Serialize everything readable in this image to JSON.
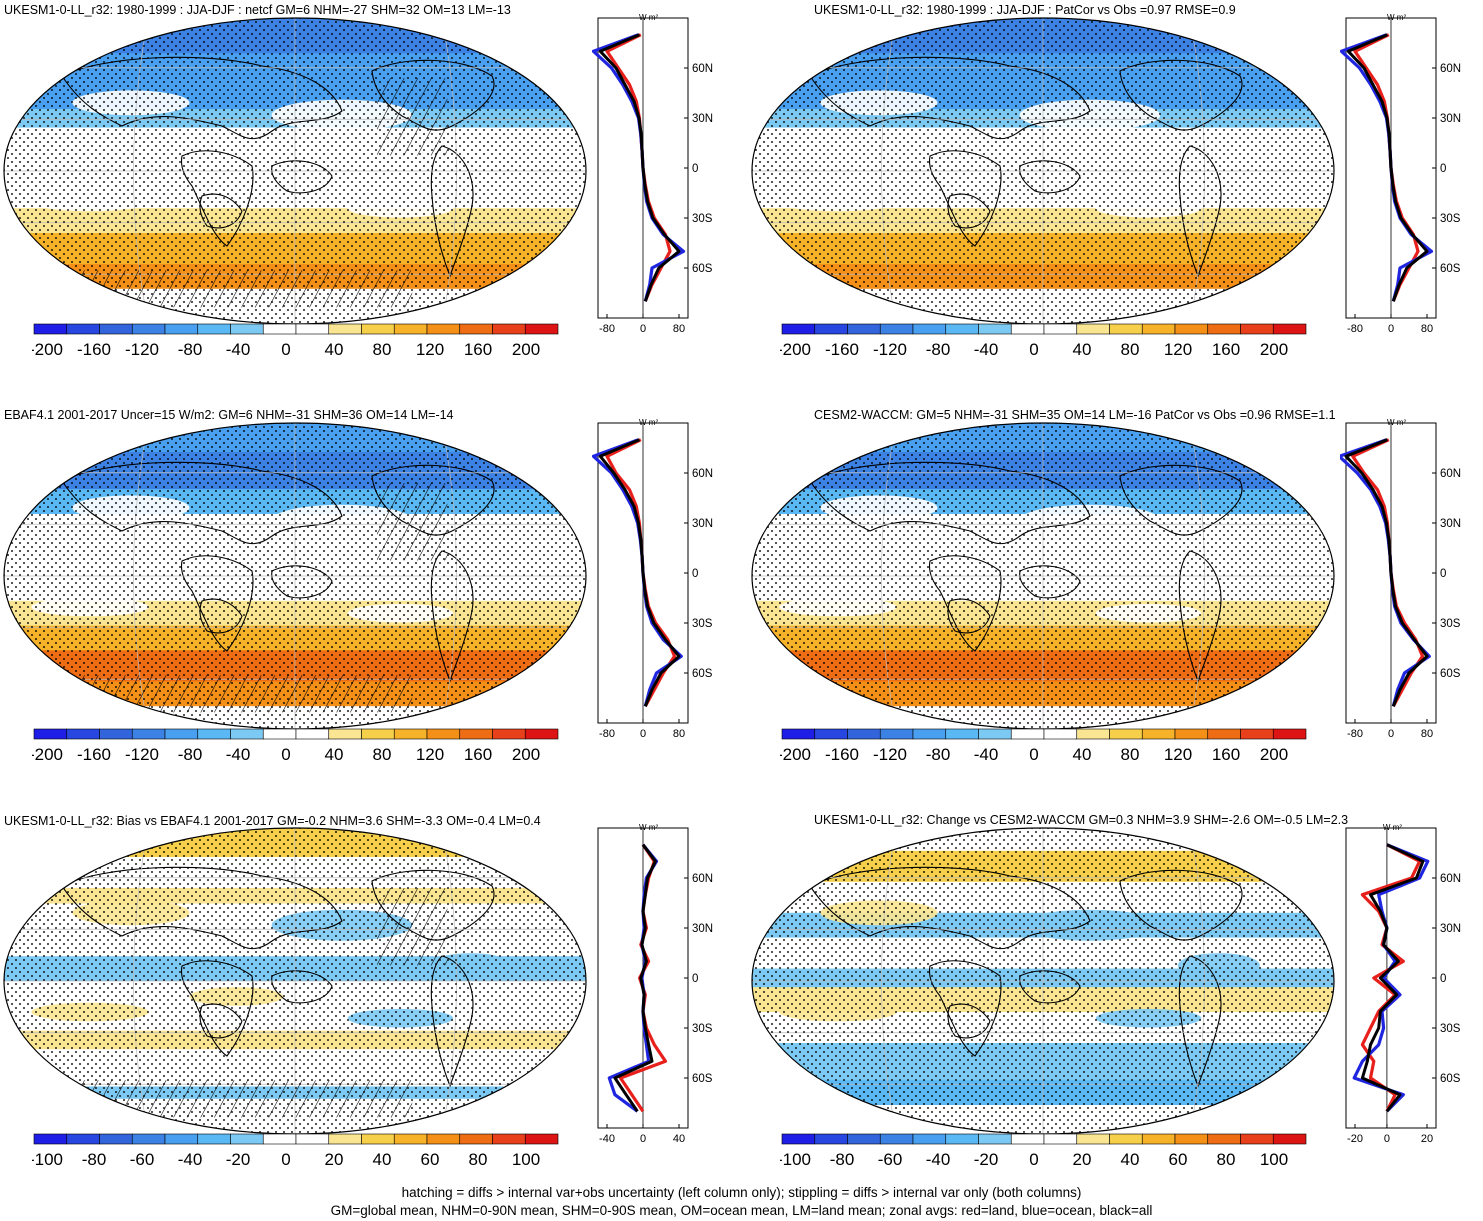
{
  "colors": {
    "scale": [
      "#1e1ee6",
      "#2846e0",
      "#3264dc",
      "#3c82e4",
      "#4aa0f0",
      "#5ab8f4",
      "#7ccaf4",
      "#ffffff",
      "#ffffff",
      "#fae692",
      "#f6d04a",
      "#f6b228",
      "#f49018",
      "#ee6c14",
      "#e8401a",
      "#dc1414"
    ],
    "land": "#e8201c",
    "ocean": "#2026e0",
    "all": "#000000"
  },
  "panels": [
    {
      "title": "UKESM1-0-LL_r32: 1980-1999 : JJA-DJF : netcf GM=6 NHM=-27 SHM=32 OM=13 LM=-13",
      "hatch": true,
      "zonal_unit": "W m²",
      "zonal_ticks": [
        "-80",
        "0",
        "80"
      ],
      "lat_ticks": [
        "60N",
        "30N",
        "0",
        "30S",
        "60S"
      ],
      "colorbar_labels": [
        "-200",
        "-160",
        "-120",
        "-80",
        "-40",
        "0",
        "40",
        "80",
        "120",
        "160",
        "200"
      ]
    },
    {
      "title": "UKESM1-0-LL_r32: 1980-1999 : JJA-DJF : PatCor vs Obs =0.97 RMSE=0.9",
      "hatch": false,
      "zonal_unit": "W m²",
      "zonal_ticks": [
        "-80",
        "0",
        "80"
      ],
      "lat_ticks": [
        "60N",
        "30N",
        "0",
        "30S",
        "60S"
      ],
      "colorbar_labels": [
        "-200",
        "-160",
        "-120",
        "-80",
        "-40",
        "0",
        "40",
        "80",
        "120",
        "160",
        "200"
      ]
    },
    {
      "title": "EBAF4.1 2001-2017 Uncer=15 W/m2: GM=6 NHM=-31 SHM=36 OM=14 LM=-14",
      "hatch": true,
      "zonal_unit": "W m²",
      "zonal_ticks": [
        "-80",
        "0",
        "80"
      ],
      "lat_ticks": [
        "60N",
        "30N",
        "0",
        "30S",
        "60S"
      ],
      "colorbar_labels": [
        "-200",
        "-160",
        "-120",
        "-80",
        "-40",
        "0",
        "40",
        "80",
        "120",
        "160",
        "200"
      ]
    },
    {
      "title": "CESM2-WACCM: GM=5 NHM=-31 SHM=35 OM=14 LM=-16 PatCor vs Obs =0.96 RMSE=1.1",
      "hatch": false,
      "zonal_unit": "W m²",
      "zonal_ticks": [
        "-80",
        "0",
        "80"
      ],
      "lat_ticks": [
        "60N",
        "30N",
        "0",
        "30S",
        "60S"
      ],
      "colorbar_labels": [
        "-200",
        "-160",
        "-120",
        "-80",
        "-40",
        "0",
        "40",
        "80",
        "120",
        "160",
        "200"
      ]
    },
    {
      "title": "UKESM1-0-LL_r32: Bias vs EBAF4.1 2001-2017 GM=-0.2 NHM=3.6 SHM=-3.3 OM=-0.4 LM=0.4",
      "hatch": true,
      "zonal_unit": "W m²",
      "zonal_ticks": [
        "-40",
        "0",
        "40"
      ],
      "lat_ticks": [
        "60N",
        "30N",
        "0",
        "30S",
        "60S"
      ],
      "colorbar_labels": [
        "-100",
        "-80",
        "-60",
        "-40",
        "-20",
        "0",
        "20",
        "40",
        "60",
        "80",
        "100"
      ]
    },
    {
      "title": "UKESM1-0-LL_r32: Change vs CESM2-WACCM GM=0.3 NHM=3.9 SHM=-2.6 OM=-0.5 LM=2.3",
      "hatch": false,
      "zonal_unit": "W m²",
      "zonal_ticks": [
        "-20",
        "0",
        "20"
      ],
      "lat_ticks": [
        "60N",
        "30N",
        "0",
        "30S",
        "60S"
      ],
      "colorbar_labels": [
        "-100",
        "-80",
        "-60",
        "-40",
        "-20",
        "0",
        "20",
        "40",
        "60",
        "80",
        "100"
      ]
    }
  ],
  "footer": {
    "line1": "hatching = diffs > internal var+obs uncertainty (left column only); stippling = diffs > internal var only (both columns)",
    "line2": "GM=global mean, NHM=0-90N mean, SHM=0-90S mean, OM=ocean mean, LM=land mean; zonal avgs: red=land, blue=ocean, black=all"
  },
  "chart_data": [
    {
      "type": "heatmap",
      "title": "UKESM1-0-LL_r32: 1980-1999 : JJA-DJF : netcf GM=6 NHM=-27 SHM=32 OM=13 LM=-13",
      "colorbar": {
        "min": -200,
        "max": 200,
        "labels": [
          -200,
          -160,
          -120,
          -80,
          -40,
          0,
          40,
          80,
          120,
          160,
          200
        ]
      },
      "zonal_mean": {
        "xlim": [
          -100,
          100
        ],
        "ylim": [
          -90,
          90
        ],
        "lat": [
          80,
          70,
          60,
          50,
          40,
          30,
          20,
          10,
          0,
          -10,
          -20,
          -30,
          -40,
          -50,
          -60,
          -70,
          -80
        ],
        "series": [
          {
            "values": [
              -5,
              -80,
              -55,
              -30,
              -15,
              -8,
              -5,
              -2,
              0,
              5,
              12,
              25,
              50,
              60,
              40,
              20,
              5
            ]
          },
          {
            "values": [
              -10,
              -110,
              -70,
              -45,
              -25,
              -10,
              -5,
              -2,
              0,
              3,
              8,
              20,
              45,
              90,
              20,
              15,
              5
            ]
          },
          {
            "values": [
              -8,
              -95,
              -60,
              -40,
              -20,
              -9,
              -4,
              -2,
              0,
              4,
              10,
              22,
              48,
              80,
              35,
              18,
              5
            ]
          }
        ]
      }
    },
    {
      "type": "heatmap",
      "title": "UKESM1-0-LL_r32: 1980-1999 : JJA-DJF : PatCor vs Obs =0.97 RMSE=0.9",
      "colorbar": {
        "min": -200,
        "max": 200,
        "labels": [
          -200,
          -160,
          -120,
          -80,
          -40,
          0,
          40,
          80,
          120,
          160,
          200
        ]
      },
      "zonal_mean": {
        "xlim": [
          -100,
          100
        ],
        "ylim": [
          -90,
          90
        ],
        "lat": [
          80,
          70,
          60,
          50,
          40,
          30,
          20,
          10,
          0,
          -10,
          -20,
          -30,
          -40,
          -50,
          -60,
          -70,
          -80
        ],
        "series": [
          {
            "values": [
              -5,
              -80,
              -55,
              -30,
              -15,
              -8,
              -5,
              -2,
              0,
              5,
              12,
              25,
              50,
              60,
              40,
              20,
              5
            ]
          },
          {
            "values": [
              -10,
              -110,
              -70,
              -45,
              -25,
              -10,
              -5,
              -2,
              0,
              3,
              8,
              20,
              45,
              90,
              20,
              15,
              5
            ]
          },
          {
            "values": [
              -8,
              -95,
              -60,
              -40,
              -20,
              -9,
              -4,
              -2,
              0,
              4,
              10,
              22,
              48,
              80,
              35,
              18,
              5
            ]
          }
        ]
      }
    },
    {
      "type": "heatmap",
      "title": "EBAF4.1 2001-2017 Uncer=15 W/m2: GM=6 NHM=-31 SHM=36 OM=14 LM=-14",
      "colorbar": {
        "min": -200,
        "max": 200,
        "labels": [
          -200,
          -160,
          -120,
          -80,
          -40,
          0,
          40,
          80,
          120,
          160,
          200
        ]
      },
      "zonal_mean": {
        "xlim": [
          -100,
          100
        ],
        "ylim": [
          -90,
          90
        ],
        "lat": [
          80,
          70,
          60,
          50,
          40,
          30,
          20,
          10,
          0,
          -10,
          -20,
          -30,
          -40,
          -50,
          -60,
          -70,
          -80
        ],
        "series": [
          {
            "values": [
              -5,
              -80,
              -60,
              -30,
              -15,
              -8,
              -5,
              -2,
              0,
              5,
              12,
              28,
              55,
              70,
              45,
              25,
              5
            ]
          },
          {
            "values": [
              -10,
              -110,
              -70,
              -45,
              -25,
              -12,
              -6,
              -2,
              0,
              3,
              8,
              20,
              45,
              85,
              30,
              15,
              5
            ]
          },
          {
            "values": [
              -8,
              -95,
              -65,
              -40,
              -20,
              -10,
              -5,
              -2,
              0,
              4,
              10,
              24,
              50,
              80,
              40,
              20,
              5
            ]
          }
        ]
      }
    },
    {
      "type": "heatmap",
      "title": "CESM2-WACCM: GM=5 NHM=-31 SHM=35 OM=14 LM=-16 PatCor vs Obs =0.96 RMSE=1.1",
      "colorbar": {
        "min": -200,
        "max": 200,
        "labels": [
          -200,
          -160,
          -120,
          -80,
          -40,
          0,
          40,
          80,
          120,
          160,
          200
        ]
      },
      "zonal_mean": {
        "xlim": [
          -100,
          100
        ],
        "ylim": [
          -90,
          90
        ],
        "lat": [
          80,
          70,
          60,
          50,
          40,
          30,
          20,
          10,
          0,
          -10,
          -20,
          -30,
          -40,
          -50,
          -60,
          -70,
          -80
        ],
        "series": [
          {
            "values": [
              -5,
              -85,
              -60,
              -30,
              -15,
              -8,
              -5,
              -2,
              0,
              5,
              12,
              30,
              55,
              70,
              45,
              25,
              5
            ]
          },
          {
            "values": [
              -10,
              -115,
              -75,
              -45,
              -25,
              -12,
              -6,
              -2,
              0,
              3,
              8,
              22,
              50,
              85,
              30,
              15,
              5
            ]
          },
          {
            "values": [
              -8,
              -100,
              -65,
              -40,
              -20,
              -10,
              -5,
              -2,
              0,
              4,
              10,
              25,
              52,
              80,
              40,
              20,
              5
            ]
          }
        ]
      }
    },
    {
      "type": "heatmap",
      "title": "UKESM1-0-LL_r32: Bias vs EBAF4.1 2001-2017 GM=-0.2 NHM=3.6 SHM=-3.3 OM=-0.4 LM=0.4",
      "colorbar": {
        "min": -100,
        "max": 100,
        "labels": [
          -100,
          -80,
          -60,
          -40,
          -20,
          0,
          20,
          40,
          60,
          80,
          100
        ]
      },
      "zonal_mean": {
        "xlim": [
          -40,
          40
        ],
        "ylim": [
          -90,
          90
        ],
        "lat": [
          80,
          70,
          60,
          50,
          40,
          30,
          20,
          10,
          0,
          -10,
          -20,
          -30,
          -40,
          -50,
          -60,
          -70,
          -80
        ],
        "series": [
          {
            "values": [
              0,
              10,
              5,
              2,
              0,
              3,
              -2,
              5,
              -3,
              2,
              0,
              3,
              10,
              20,
              -20,
              -10,
              0
            ]
          },
          {
            "values": [
              0,
              12,
              3,
              1,
              0,
              1,
              -1,
              2,
              -1,
              1,
              0,
              1,
              3,
              5,
              -30,
              -25,
              -5
            ]
          },
          {
            "values": [
              0,
              11,
              4,
              2,
              0,
              2,
              -1,
              3,
              -2,
              1,
              0,
              2,
              5,
              8,
              -25,
              -15,
              -5
            ]
          }
        ]
      }
    },
    {
      "type": "heatmap",
      "title": "UKESM1-0-LL_r32: Change vs CESM2-WACCM GM=0.3 NHM=3.9 SHM=-2.6 OM=-0.5 LM=2.3",
      "colorbar": {
        "min": -100,
        "max": 100,
        "labels": [
          -100,
          -80,
          -60,
          -40,
          -20,
          0,
          20,
          40,
          60,
          80,
          100
        ]
      },
      "zonal_mean": {
        "xlim": [
          -25,
          30
        ],
        "ylim": [
          -90,
          90
        ],
        "lat": [
          80,
          70,
          60,
          50,
          40,
          30,
          20,
          10,
          0,
          -10,
          -20,
          -30,
          -40,
          -50,
          -60,
          -70,
          -80
        ],
        "series": [
          {
            "values": [
              0,
              20,
              15,
              -15,
              -5,
              0,
              -3,
              10,
              -8,
              5,
              -5,
              -10,
              -15,
              -8,
              -10,
              5,
              0
            ]
          },
          {
            "values": [
              0,
              25,
              20,
              -5,
              -3,
              0,
              -2,
              5,
              -2,
              8,
              -3,
              -2,
              -5,
              -15,
              -20,
              10,
              0
            ]
          },
          {
            "values": [
              0,
              22,
              18,
              -10,
              -4,
              0,
              -2,
              7,
              -4,
              6,
              -4,
              -5,
              -10,
              -12,
              -15,
              8,
              0
            ]
          }
        ]
      }
    }
  ]
}
